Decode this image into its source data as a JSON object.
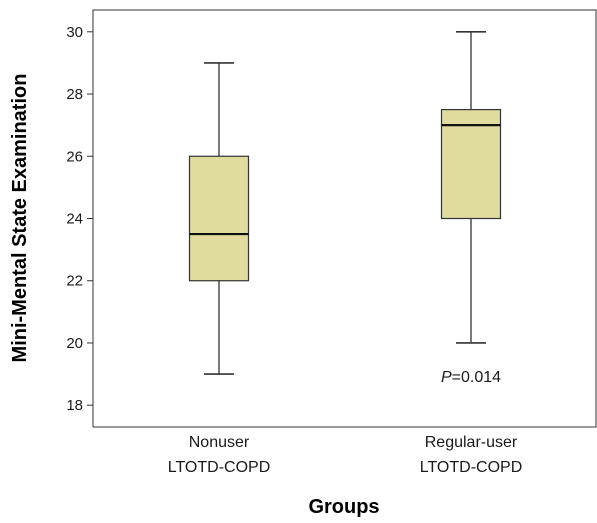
{
  "chart_data": {
    "type": "box",
    "title": "",
    "xlabel": "Groups",
    "ylabel": "Mini-Mental State Examination",
    "ylim": [
      17.3,
      30.7
    ],
    "yticks": [
      18,
      20,
      22,
      24,
      26,
      28,
      30
    ],
    "grid": false,
    "categories": [
      [
        "Nonuser",
        "LTOTD-COPD"
      ],
      [
        "Regular-user",
        "LTOTD-COPD"
      ]
    ],
    "boxes": [
      {
        "whisker_low": 19,
        "q1": 22,
        "median": 23.5,
        "q3": 26,
        "whisker_high": 29
      },
      {
        "whisker_low": 20,
        "q1": 24,
        "median": 27,
        "q3": 27.5,
        "whisker_high": 30
      }
    ],
    "box_color": "#e0db9e",
    "annotation": {
      "italic": "P",
      "rest": "=0.014",
      "y": 18.9
    }
  }
}
